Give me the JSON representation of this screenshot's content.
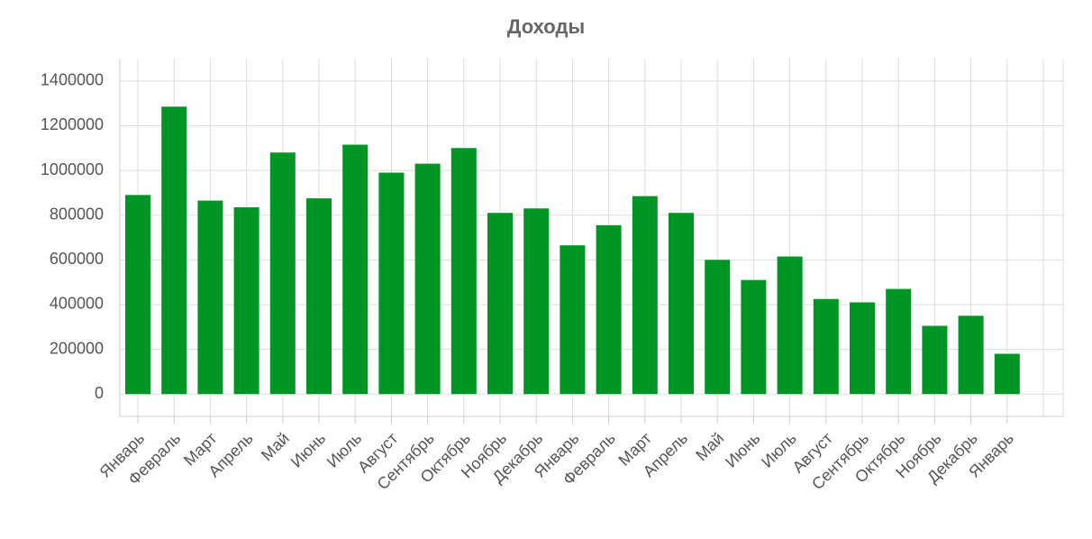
{
  "chart_data": {
    "type": "bar",
    "title": "Доходы",
    "categories": [
      "Январь",
      "Февраль",
      "Март",
      "Апрель",
      "Май",
      "Июнь",
      "Июль",
      "Август",
      "Сентябрь",
      "Октябрь",
      "Ноябрь",
      "Декабрь",
      "Январь",
      "Февраль",
      "Март",
      "Апрель",
      "Май",
      "Июнь",
      "Июль",
      "Август",
      "Сентябрь",
      "Октябрь",
      "Ноябрь",
      "Декабрь",
      "Январь"
    ],
    "values": [
      890000,
      1285000,
      865000,
      835000,
      1080000,
      875000,
      1115000,
      990000,
      1030000,
      1100000,
      810000,
      830000,
      665000,
      755000,
      885000,
      810000,
      600000,
      510000,
      615000,
      425000,
      410000,
      470000,
      305000,
      350000,
      180000
    ],
    "color": "#009626",
    "ylim": [
      -100000,
      1500000
    ],
    "yticks": [
      0,
      200000,
      400000,
      600000,
      800000,
      1000000,
      1200000,
      1400000
    ],
    "grid": true
  }
}
